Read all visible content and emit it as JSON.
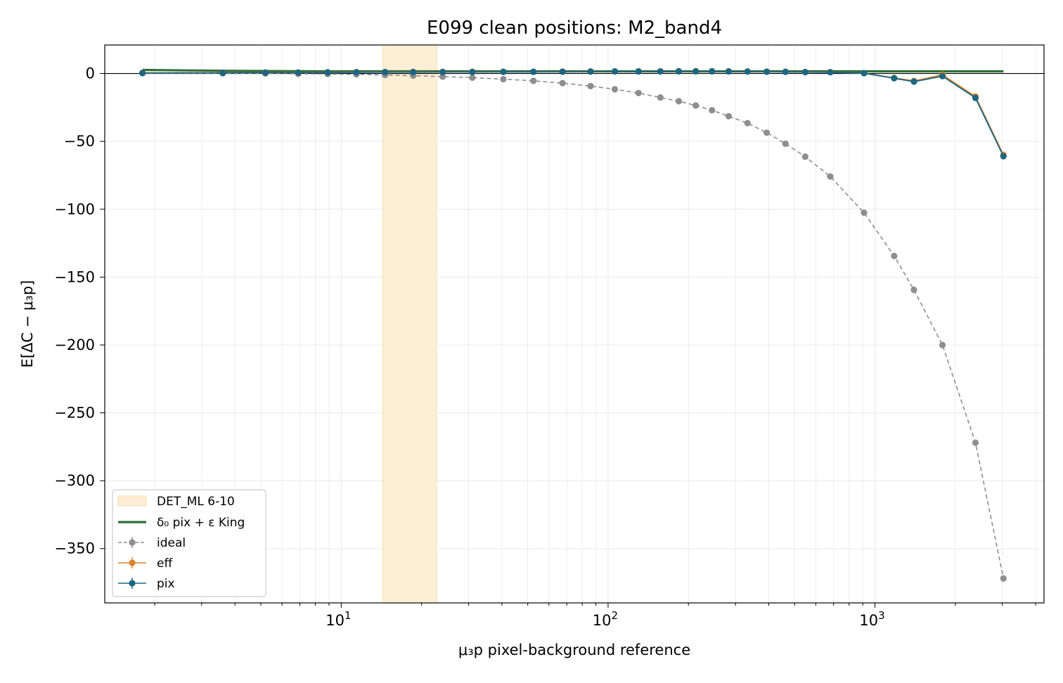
{
  "chart_data": {
    "type": "line",
    "title": "E099 clean positions: M2_band4",
    "xlabel": "μ₃p pixel-background reference",
    "ylabel": "E[ΔC − μ₃p]",
    "xscale": "log",
    "xlim": [
      1.3,
      4300
    ],
    "ylim": [
      -390,
      21
    ],
    "grid": true,
    "legend_position": "lower-left",
    "x_ticks": [
      {
        "value": 10,
        "base": "10",
        "exp": "1"
      },
      {
        "value": 100,
        "base": "10",
        "exp": "2"
      },
      {
        "value": 1000,
        "base": "10",
        "exp": "3"
      }
    ],
    "y_ticks": [
      {
        "value": 0,
        "label": "0"
      },
      {
        "value": -50,
        "label": "−50"
      },
      {
        "value": -100,
        "label": "−100"
      },
      {
        "value": -150,
        "label": "−150"
      },
      {
        "value": -200,
        "label": "−200"
      },
      {
        "value": -250,
        "label": "−250"
      },
      {
        "value": -300,
        "label": "−300"
      },
      {
        "value": -350,
        "label": "−350"
      }
    ],
    "shaded_band": {
      "name": "DET_ML 6-10",
      "x0": 14.3,
      "x1": 22.8,
      "color": "#fdefd6"
    },
    "zero_line": 0,
    "x": [
      1.8,
      3.6,
      5.2,
      6.9,
      8.9,
      11.4,
      14.6,
      18.6,
      24.0,
      31.0,
      40.5,
      52.5,
      67.5,
      86.0,
      106.0,
      130.0,
      157.0,
      184.0,
      213.0,
      245.0,
      283.0,
      333.0,
      393.0,
      462.0,
      548.0,
      680.0,
      910.0,
      1180.0,
      1400.0,
      1790.0,
      2380.0,
      3030.0
    ],
    "series": [
      {
        "name": "δ₀ pix + ε King",
        "kind": "line",
        "color": "#2f6f38",
        "x": [
          1.8,
          3.6,
          5.2,
          6.9,
          8.9,
          11.4,
          14.6,
          18.6,
          24.0,
          31.0,
          40.5,
          52.5,
          67.5,
          86.0,
          106.0,
          130.0,
          157.0,
          184.0,
          213.0,
          245.0,
          283.0,
          333.0,
          393.0,
          462.0,
          548.0,
          680.0,
          910.0,
          1180.0,
          1400.0,
          1790.0,
          2380.0,
          3030.0
        ],
        "values": [
          2.6,
          2.0,
          1.8,
          1.7,
          1.6,
          1.6,
          1.6,
          1.6,
          1.6,
          1.6,
          1.6,
          1.6,
          1.6,
          1.6,
          1.6,
          1.6,
          1.6,
          1.6,
          1.6,
          1.6,
          1.6,
          1.6,
          1.6,
          1.6,
          1.6,
          1.6,
          1.6,
          1.6,
          1.6,
          1.6,
          1.6,
          1.6
        ]
      },
      {
        "name": "ideal",
        "kind": "dashed-markers",
        "color": "#8e8e8e",
        "values": [
          0.2,
          0.1,
          0.0,
          -0.2,
          -0.4,
          -0.7,
          -1.1,
          -1.6,
          -2.3,
          -3.1,
          -4.2,
          -5.4,
          -7.1,
          -9.3,
          -11.6,
          -14.4,
          -17.7,
          -20.4,
          -23.6,
          -27.1,
          -31.5,
          -36.6,
          -43.6,
          -51.7,
          -61.3,
          -75.9,
          -102.6,
          -134.4,
          -159.4,
          -200.0,
          -272.0,
          -372.0
        ]
      },
      {
        "name": "eff",
        "kind": "line-markers",
        "color": "#d9822b",
        "values": [
          0.5,
          0.6,
          0.7,
          0.7,
          0.9,
          1.0,
          1.1,
          1.2,
          1.2,
          1.3,
          1.3,
          1.3,
          1.4,
          1.5,
          1.6,
          1.6,
          1.6,
          1.7,
          1.7,
          1.7,
          1.6,
          1.5,
          1.4,
          1.3,
          1.1,
          1.0,
          0.3,
          -3.3,
          -5.5,
          -1.0,
          -17.0,
          -60.0
        ]
      },
      {
        "name": "pix",
        "kind": "line-markers",
        "color": "#1c6682",
        "values": [
          0.3,
          0.5,
          0.6,
          0.6,
          0.8,
          0.9,
          1.0,
          1.0,
          1.1,
          1.1,
          1.2,
          1.2,
          1.3,
          1.4,
          1.5,
          1.5,
          1.5,
          1.6,
          1.6,
          1.6,
          1.5,
          1.4,
          1.3,
          1.2,
          1.0,
          0.9,
          0.2,
          -3.5,
          -6.0,
          -2.0,
          -18.0,
          -61.0
        ]
      }
    ]
  }
}
